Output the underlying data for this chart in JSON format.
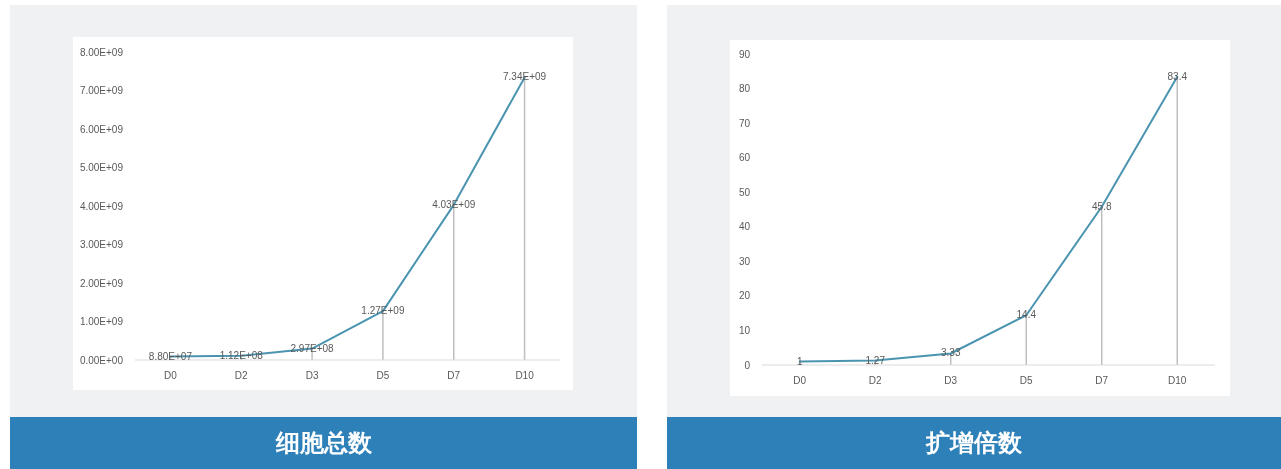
{
  "chart_data": [
    {
      "type": "line",
      "title": "细胞总数",
      "categories": [
        "D0",
        "D2",
        "D3",
        "D5",
        "D7",
        "D10"
      ],
      "series": [
        {
          "color": "#4a94b0",
          "values": [
            88000000,
            112000000,
            297000000,
            1270000000,
            4030000000,
            7340000000
          ],
          "value_labels": [
            "8.80E+07",
            "1.12E+08",
            "2.97E+08",
            "1.27E+09",
            "4.03E+09",
            "7.34E+09"
          ]
        }
      ],
      "ylim": [
        0,
        8000000000
      ],
      "yticks": [
        {
          "value": 0,
          "label": "0.00E+00"
        },
        {
          "value": 1000000000,
          "label": "1.00E+09"
        },
        {
          "value": 2000000000,
          "label": "2.00E+09"
        },
        {
          "value": 3000000000,
          "label": "3.00E+09"
        },
        {
          "value": 4000000000,
          "label": "4.00E+09"
        },
        {
          "value": 5000000000,
          "label": "5.00E+09"
        },
        {
          "value": 6000000000,
          "label": "6.00E+09"
        },
        {
          "value": 7000000000,
          "label": "7.00E+09"
        },
        {
          "value": 8000000000,
          "label": "8.00E+09"
        }
      ],
      "grid": "x",
      "marker": "none"
    },
    {
      "type": "line",
      "title": "扩增倍数",
      "categories": [
        "D0",
        "D2",
        "D3",
        "D5",
        "D7",
        "D10"
      ],
      "series": [
        {
          "color": "#4a94b0",
          "values": [
            1,
            1.27,
            3.33,
            14.4,
            45.8,
            83.4
          ]
        }
      ],
      "ylim": [
        0,
        90
      ],
      "yticks": [
        0,
        10,
        20,
        30,
        40,
        50,
        60,
        70,
        80,
        90
      ],
      "data_labels": true,
      "grid": "x",
      "marker": "none"
    }
  ]
}
